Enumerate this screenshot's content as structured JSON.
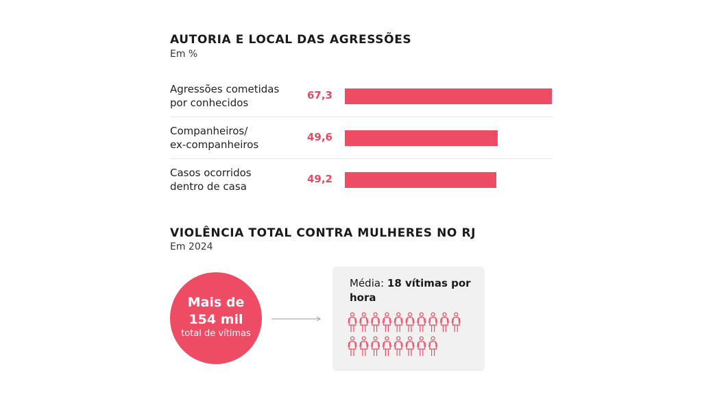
{
  "chart_data": [
    {
      "type": "bar",
      "title": "AUTORIA E LOCAL DAS AGRESSÕES",
      "subtitle": "Em %",
      "categories": [
        [
          "Agressões cometidas",
          "por conhecidos"
        ],
        [
          "Companheiros/",
          "ex-companheiros"
        ],
        [
          "Casos ocorridos",
          "dentro de casa"
        ]
      ],
      "values": [
        67.3,
        49.6,
        49.2
      ],
      "value_labels": [
        "67,3",
        "49,6",
        "49,2"
      ],
      "xlim": [
        0,
        67.3
      ],
      "bar_color": "#ee4b65",
      "grid": false
    }
  ],
  "section2": {
    "title": "VIOLÊNCIA TOTAL CONTRA MULHERES NO RJ",
    "subtitle": "Em 2024",
    "circle_line1": "Mais de",
    "circle_line2": "154 mil",
    "circle_line3": "total de vítimas",
    "panel_label": "Média:",
    "panel_value": "18 vítimas por hora",
    "pictogram_count": 18,
    "accent": "#ee4b65"
  }
}
